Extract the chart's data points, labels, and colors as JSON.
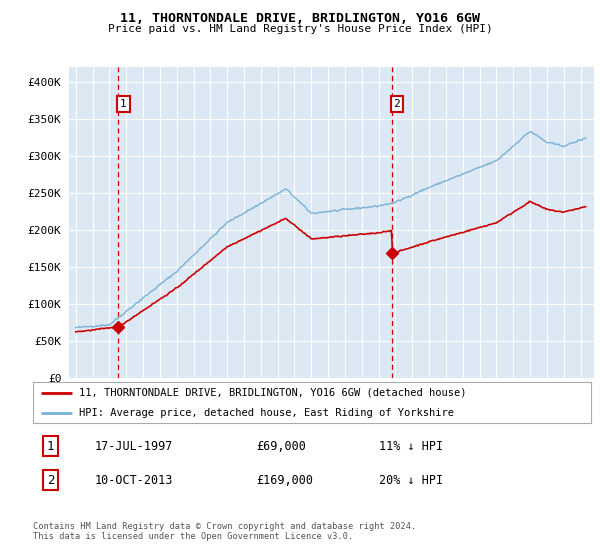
{
  "title": "11, THORNTONDALE DRIVE, BRIDLINGTON, YO16 6GW",
  "subtitle": "Price paid vs. HM Land Registry's House Price Index (HPI)",
  "bg_color": "#dce9f5",
  "legend_label_red": "11, THORNTONDALE DRIVE, BRIDLINGTON, YO16 6GW (detached house)",
  "legend_label_blue": "HPI: Average price, detached house, East Riding of Yorkshire",
  "footnote": "Contains HM Land Registry data © Crown copyright and database right 2024.\nThis data is licensed under the Open Government Licence v3.0.",
  "sale1_date": "17-JUL-1997",
  "sale1_price": 69000,
  "sale1_hpi": "11% ↓ HPI",
  "sale2_date": "10-OCT-2013",
  "sale2_price": 169000,
  "sale2_hpi": "20% ↓ HPI",
  "ylim": [
    0,
    420000
  ],
  "yticks": [
    0,
    50000,
    100000,
    150000,
    200000,
    250000,
    300000,
    350000,
    400000
  ],
  "ytick_labels": [
    "£0",
    "£50K",
    "£100K",
    "£150K",
    "£200K",
    "£250K",
    "£300K",
    "£350K",
    "£400K"
  ],
  "red_color": "#cc0000",
  "blue_color": "#7ab0d4",
  "dashed_red": "#cc0000",
  "grid_color": "#ffffff",
  "sale1_x": 1997.54,
  "sale2_x": 2013.78
}
